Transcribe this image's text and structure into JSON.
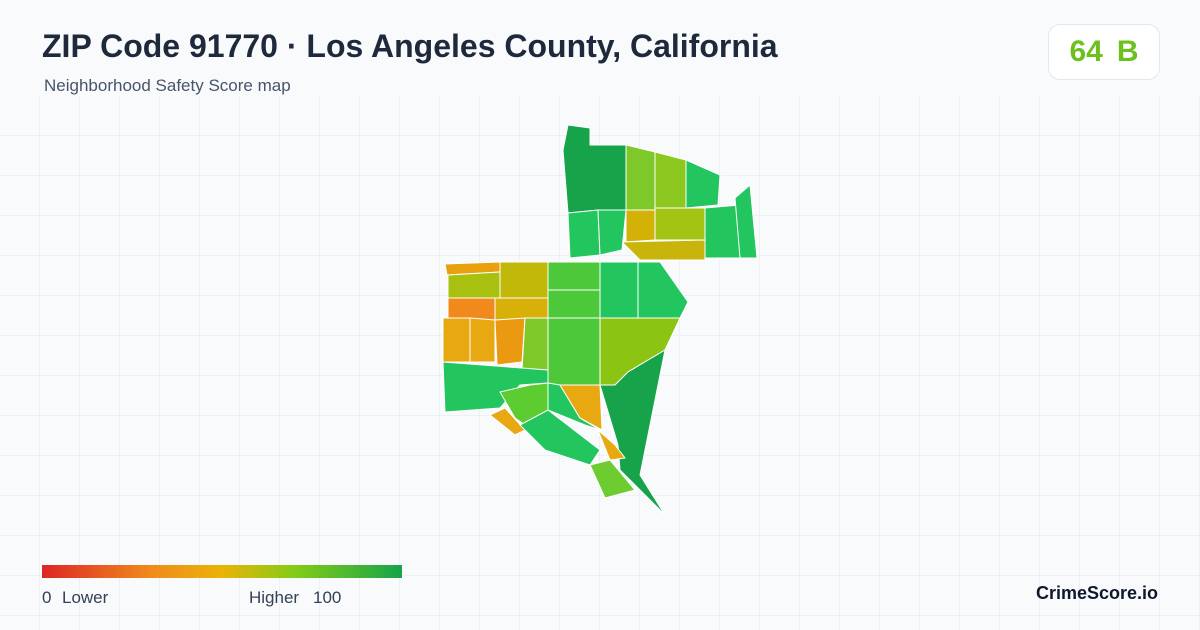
{
  "header": {
    "title": "ZIP Code 91770 · Los Angeles County, California",
    "subtitle": "Neighborhood Safety Score map"
  },
  "score": {
    "value": 64,
    "grade": "B"
  },
  "legend": {
    "min": 0,
    "min_label": "Lower",
    "max_label": "Higher",
    "max": 100
  },
  "brand": "CrimeScore.io"
}
